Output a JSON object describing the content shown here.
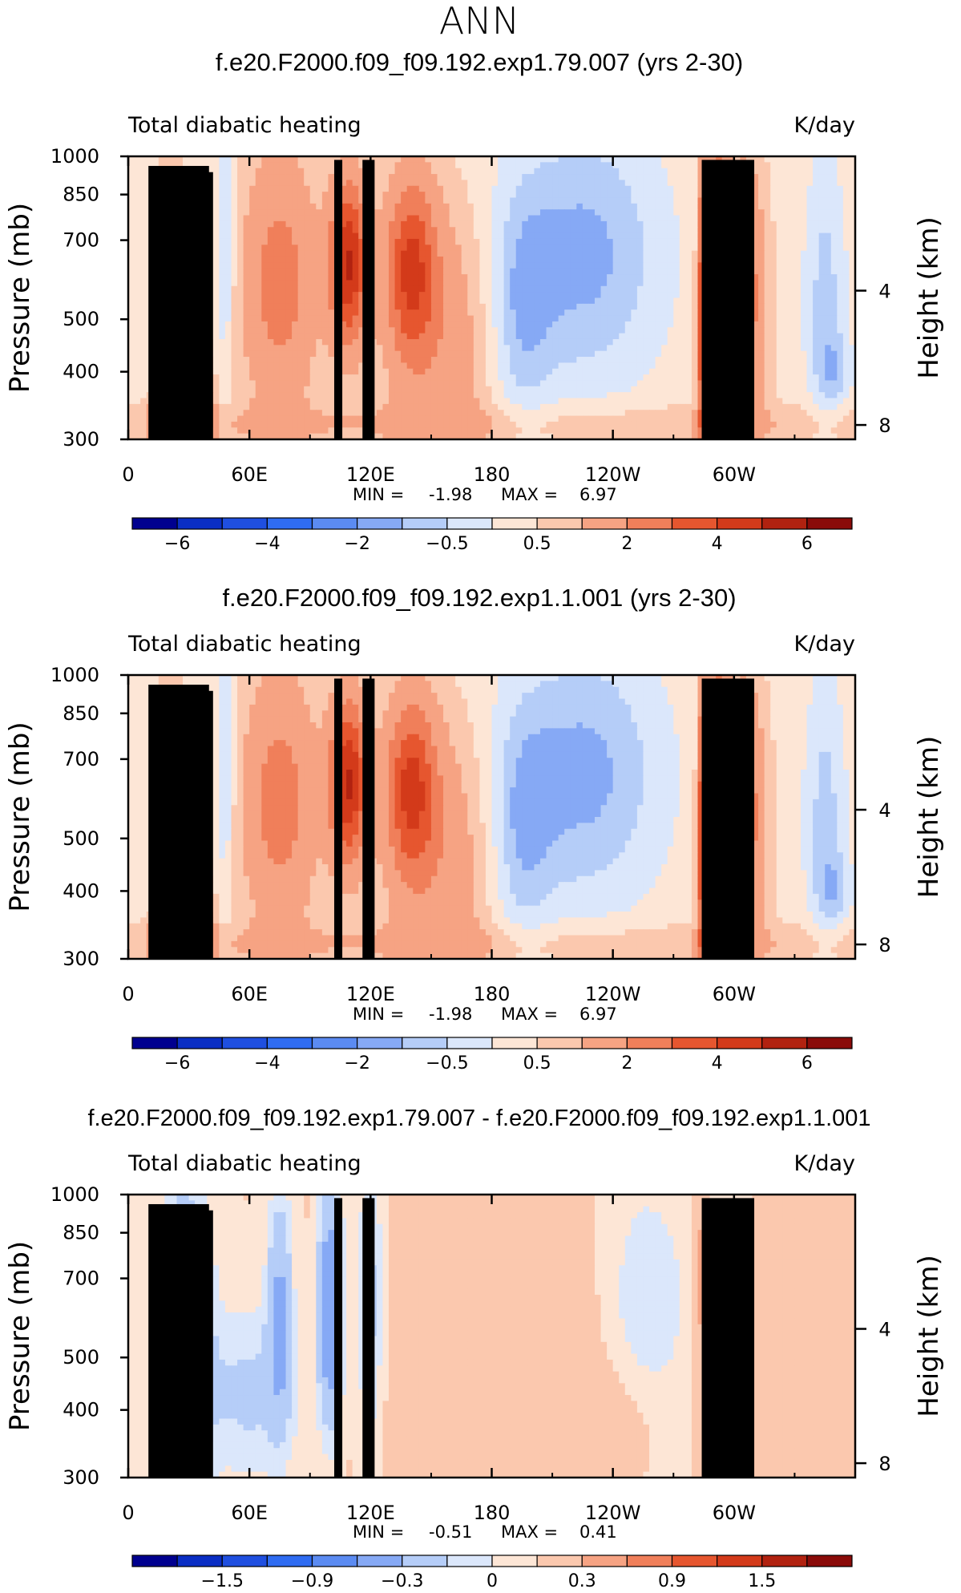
{
  "figure": {
    "season": "ANN",
    "colorbar_main_labels": [
      "-6",
      "-4",
      "-2",
      "-0.5",
      "0.5",
      "2",
      "4",
      "6"
    ],
    "colorbar_diff_labels": [
      "-1.5",
      "-0.9",
      "-0.3",
      "0",
      "0.3",
      "0.9",
      "1.5"
    ],
    "colorbar_main_colors": [
      "#00008f",
      "#0a2ec4",
      "#1f4fe0",
      "#2f6cf2",
      "#5b8bf2",
      "#86a9f5",
      "#b5cdf8",
      "#dbe7fb",
      "#fde6d6",
      "#fbc8ae",
      "#f6a383",
      "#f07f5a",
      "#e6562f",
      "#d33a1a",
      "#b12210",
      "#8a0b09"
    ],
    "colorbar_diff_colors": [
      "#00008f",
      "#0a2ec4",
      "#1f4fe0",
      "#2f6cf2",
      "#5b8bf2",
      "#86a9f5",
      "#b5cdf8",
      "#dbe7fb",
      "#fde6d6",
      "#fbc8ae",
      "#f6a383",
      "#f07f5a",
      "#e6562f",
      "#d33a1a",
      "#b12210",
      "#8a0b09"
    ]
  },
  "chart_data": [
    {
      "type": "heatmap",
      "title": "f.e20.F2000.f09_f09.192.exp1.79.007 (yrs 2-30)",
      "left_label": "Total diabatic heating",
      "right_label": "K/day",
      "ylabel": "Pressure (mb)",
      "ylabel_right": "Height (km)",
      "x_ticks": [
        "0",
        "60E",
        "120E",
        "180",
        "120W",
        "60W"
      ],
      "x_tick_lon": [
        0,
        60,
        120,
        180,
        240,
        300
      ],
      "xlim": [
        0,
        360
      ],
      "y_ticks": [
        "300",
        "400",
        "500",
        "700",
        "850",
        "1000"
      ],
      "y_tick_values": [
        300,
        400,
        500,
        700,
        850,
        1000
      ],
      "ylim": [
        1000,
        300
      ],
      "height_ticks": [
        "8",
        "4"
      ],
      "height_values_km": [
        8,
        4
      ],
      "min_label": "MIN =",
      "min_value": "-1.98",
      "max_label": "MAX =",
      "max_value": "6.97",
      "colorbar": "main"
    },
    {
      "type": "heatmap",
      "title": "f.e20.F2000.f09_f09.192.exp1.1.001 (yrs 2-30)",
      "left_label": "Total diabatic heating",
      "right_label": "K/day",
      "ylabel": "Pressure (mb)",
      "ylabel_right": "Height (km)",
      "x_ticks": [
        "0",
        "60E",
        "120E",
        "180",
        "120W",
        "60W"
      ],
      "x_tick_lon": [
        0,
        60,
        120,
        180,
        240,
        300
      ],
      "xlim": [
        0,
        360
      ],
      "y_ticks": [
        "300",
        "400",
        "500",
        "700",
        "850",
        "1000"
      ],
      "y_tick_values": [
        300,
        400,
        500,
        700,
        850,
        1000
      ],
      "ylim": [
        1000,
        300
      ],
      "height_ticks": [
        "8",
        "4"
      ],
      "height_values_km": [
        8,
        4
      ],
      "min_label": "MIN =",
      "min_value": "-1.98",
      "max_label": "MAX =",
      "max_value": "6.97",
      "colorbar": "main"
    },
    {
      "type": "heatmap",
      "title": "f.e20.F2000.f09_f09.192.exp1.79.007 - f.e20.F2000.f09_f09.192.exp1.1.001",
      "left_label": "Total diabatic heating",
      "right_label": "K/day",
      "ylabel": "Pressure (mb)",
      "ylabel_right": "Height (km)",
      "x_ticks": [
        "0",
        "60E",
        "120E",
        "180",
        "120W",
        "60W"
      ],
      "x_tick_lon": [
        0,
        60,
        120,
        180,
        240,
        300
      ],
      "xlim": [
        0,
        360
      ],
      "y_ticks": [
        "300",
        "400",
        "500",
        "700",
        "850",
        "1000"
      ],
      "y_tick_values": [
        300,
        400,
        500,
        700,
        850,
        1000
      ],
      "ylim": [
        1000,
        300
      ],
      "height_ticks": [
        "8",
        "4"
      ],
      "height_values_km": [
        8,
        4
      ],
      "min_label": "MIN =",
      "min_value": "-0.51",
      "max_label": "MAX =",
      "max_value": "0.41",
      "colorbar": "diff"
    }
  ]
}
